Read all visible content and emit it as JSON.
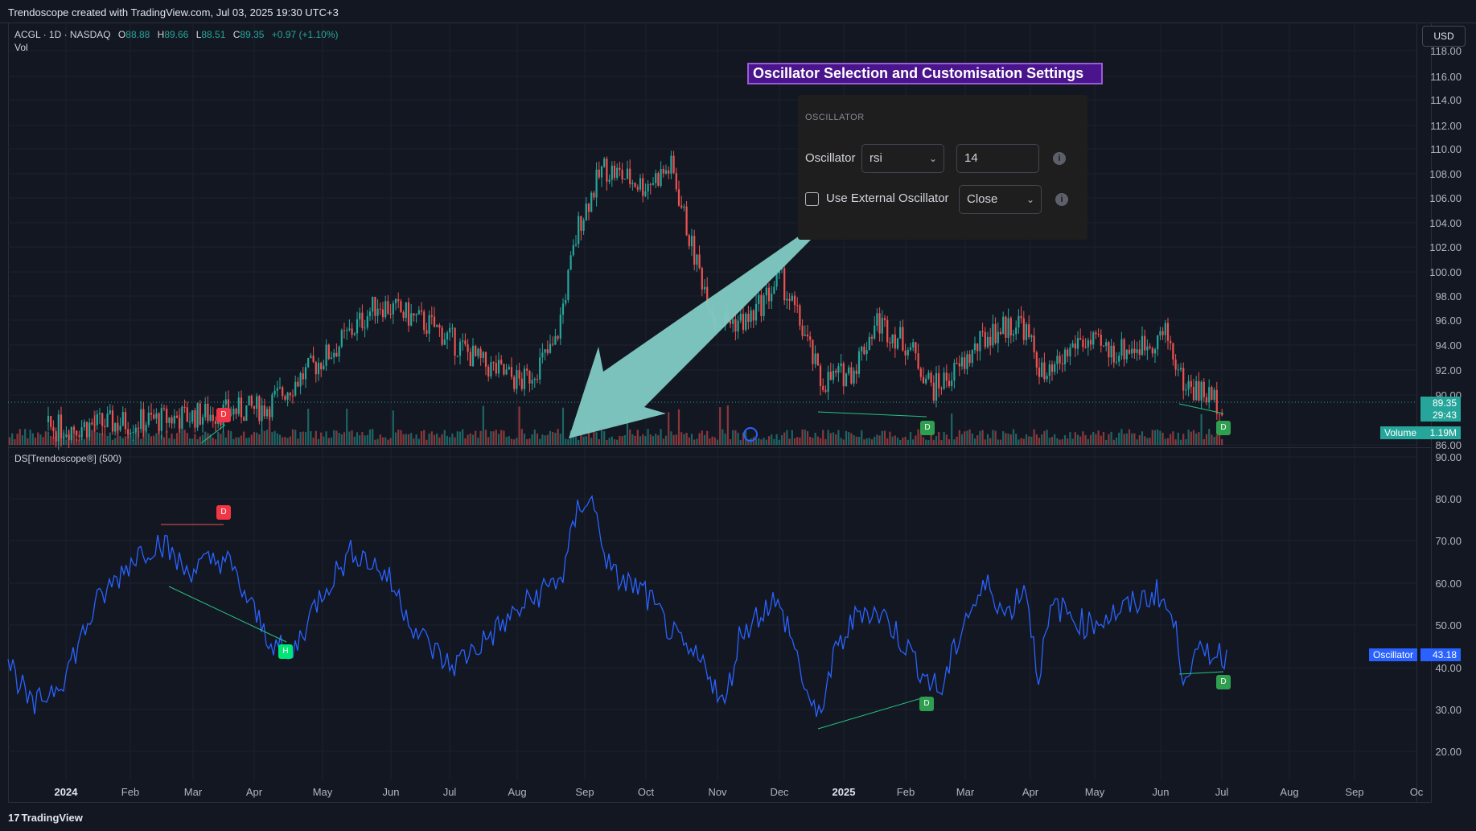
{
  "top_bar": {
    "text": "Trendoscope created with TradingView.com, Jul 03, 2025 19:30 UTC+3"
  },
  "legend": {
    "symbol": "ACGL · 1D · NASDAQ",
    "open_label": "O",
    "open": "88.88",
    "high_label": "H",
    "high": "89.66",
    "low_label": "L",
    "low": "88.51",
    "close_label": "C",
    "close": "89.35",
    "change": "+0.97 (+1.10%)",
    "vol_label": "Vol"
  },
  "currency_button": "USD",
  "price_axis": {
    "ticks": [
      "118.00",
      "116.00",
      "114.00",
      "112.00",
      "110.00",
      "108.00",
      "106.00",
      "104.00",
      "102.00",
      "100.00",
      "98.00",
      "96.00",
      "94.00",
      "92.00",
      "90.00",
      "86.00"
    ],
    "last_price": "89.35",
    "countdown": "29:43",
    "volume_label": "Volume",
    "volume_value": "1.19M"
  },
  "oscillator_pane": {
    "title": "DS[Trendoscope®] (500)",
    "ticks": [
      "90.00",
      "80.00",
      "70.00",
      "60.00",
      "50.00",
      "40.00",
      "30.00",
      "20.00"
    ],
    "label": "Oscillator",
    "value": "43.18"
  },
  "time_axis": {
    "ticks": [
      {
        "label": "2024",
        "bold": true
      },
      {
        "label": "Feb",
        "bold": false
      },
      {
        "label": "Mar",
        "bold": false
      },
      {
        "label": "Apr",
        "bold": false
      },
      {
        "label": "May",
        "bold": false
      },
      {
        "label": "Jun",
        "bold": false
      },
      {
        "label": "Jul",
        "bold": false
      },
      {
        "label": "Aug",
        "bold": false
      },
      {
        "label": "Sep",
        "bold": false
      },
      {
        "label": "Oct",
        "bold": false
      },
      {
        "label": "Nov",
        "bold": false
      },
      {
        "label": "Dec",
        "bold": false
      },
      {
        "label": "2025",
        "bold": true
      },
      {
        "label": "Feb",
        "bold": false
      },
      {
        "label": "Mar",
        "bold": false
      },
      {
        "label": "Apr",
        "bold": false
      },
      {
        "label": "May",
        "bold": false
      },
      {
        "label": "Jun",
        "bold": false
      },
      {
        "label": "Jul",
        "bold": false
      },
      {
        "label": "Aug",
        "bold": false
      },
      {
        "label": "Sep",
        "bold": false
      },
      {
        "label": "Oc",
        "bold": false
      }
    ]
  },
  "markers": {
    "divergence": "D",
    "hidden": "H"
  },
  "annotation": {
    "banner": "Oscillator Selection and Customisation Settings"
  },
  "settings_panel": {
    "section": "OSCILLATOR",
    "oscillator_label": "Oscillator",
    "oscillator_value": "rsi",
    "length_value": "14",
    "external_label": "Use External Oscillator",
    "source_value": "Close"
  },
  "footer": {
    "brand": "TradingView"
  },
  "colors": {
    "background": "#131722",
    "up": "#26a69a",
    "down": "#ef5350",
    "oscillator_line": "#2962ff",
    "arrow": "#80cbc4",
    "banner": "#4a148c"
  },
  "chart_data": {
    "type": "candlestick",
    "symbol": "ACGL",
    "last_close": 89.35,
    "price_range": [
      86,
      118
    ],
    "oscillator_range": [
      20,
      90
    ],
    "oscillator_last": 43.18,
    "volume_last": "1.19M"
  }
}
